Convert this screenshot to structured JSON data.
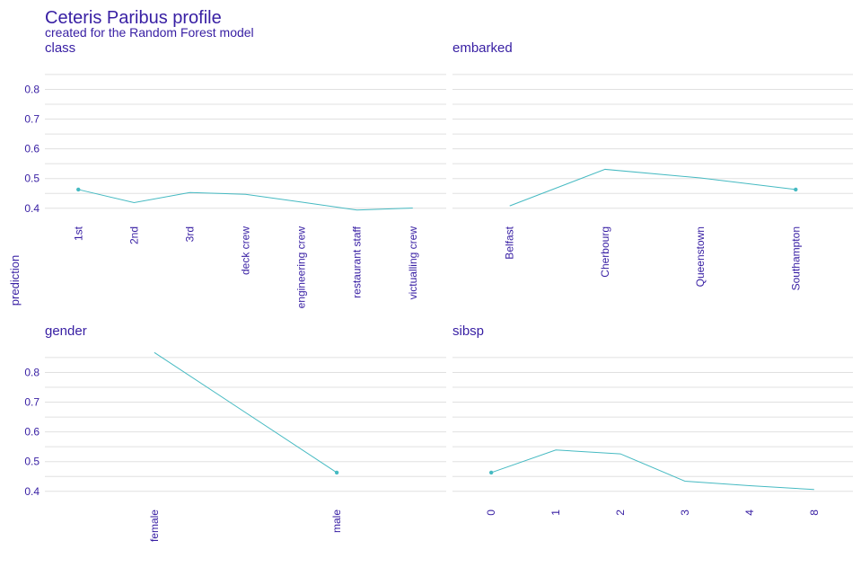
{
  "title": "Ceteris Paribus profile",
  "subtitle": "created for the Random Forest model",
  "ylabel": "prediction",
  "colors": {
    "text": "#371ea3",
    "line": "#46bac2",
    "grid": "#e0e0e0",
    "background": "#ffffff"
  },
  "chart_data": [
    {
      "type": "line",
      "panel": "class",
      "title": "class",
      "xtype": "categorical",
      "categories": [
        "1st",
        "2nd",
        "3rd",
        "deck crew",
        "engineering crew",
        "restaurant staff",
        "victualling crew"
      ],
      "values": [
        0.463,
        0.419,
        0.453,
        0.447,
        0.421,
        0.394,
        0.401
      ],
      "observation": {
        "x": "1st",
        "y": 0.463
      },
      "ylim": [
        0.36,
        0.88
      ],
      "yticks": [
        0.4,
        0.5,
        0.6,
        0.7,
        0.8
      ],
      "grid": true
    },
    {
      "type": "line",
      "panel": "embarked",
      "title": "embarked",
      "xtype": "categorical",
      "categories": [
        "Belfast",
        "Cherbourg",
        "Queenstown",
        "Southampton"
      ],
      "values": [
        0.408,
        0.531,
        0.502,
        0.463
      ],
      "observation": {
        "x": "Southampton",
        "y": 0.463
      },
      "ylim": [
        0.36,
        0.88
      ],
      "yticks": [
        0.4,
        0.5,
        0.6,
        0.7,
        0.8
      ],
      "grid": true
    },
    {
      "type": "line",
      "panel": "gender",
      "title": "gender",
      "xtype": "categorical",
      "categories": [
        "female",
        "male"
      ],
      "values": [
        0.867,
        0.463
      ],
      "observation": {
        "x": "male",
        "y": 0.463
      },
      "ylim": [
        0.36,
        0.88
      ],
      "yticks": [
        0.4,
        0.5,
        0.6,
        0.7,
        0.8
      ],
      "grid": true
    },
    {
      "type": "line",
      "panel": "sibsp",
      "title": "sibsp",
      "xtype": "categorical",
      "categories": [
        "0",
        "1",
        "2",
        "3",
        "4",
        "8"
      ],
      "values": [
        0.463,
        0.539,
        0.526,
        0.434,
        0.419,
        0.406
      ],
      "observation": {
        "x": "0",
        "y": 0.463
      },
      "ylim": [
        0.36,
        0.88
      ],
      "yticks": [
        0.4,
        0.5,
        0.6,
        0.7,
        0.8
      ],
      "grid": true
    }
  ]
}
